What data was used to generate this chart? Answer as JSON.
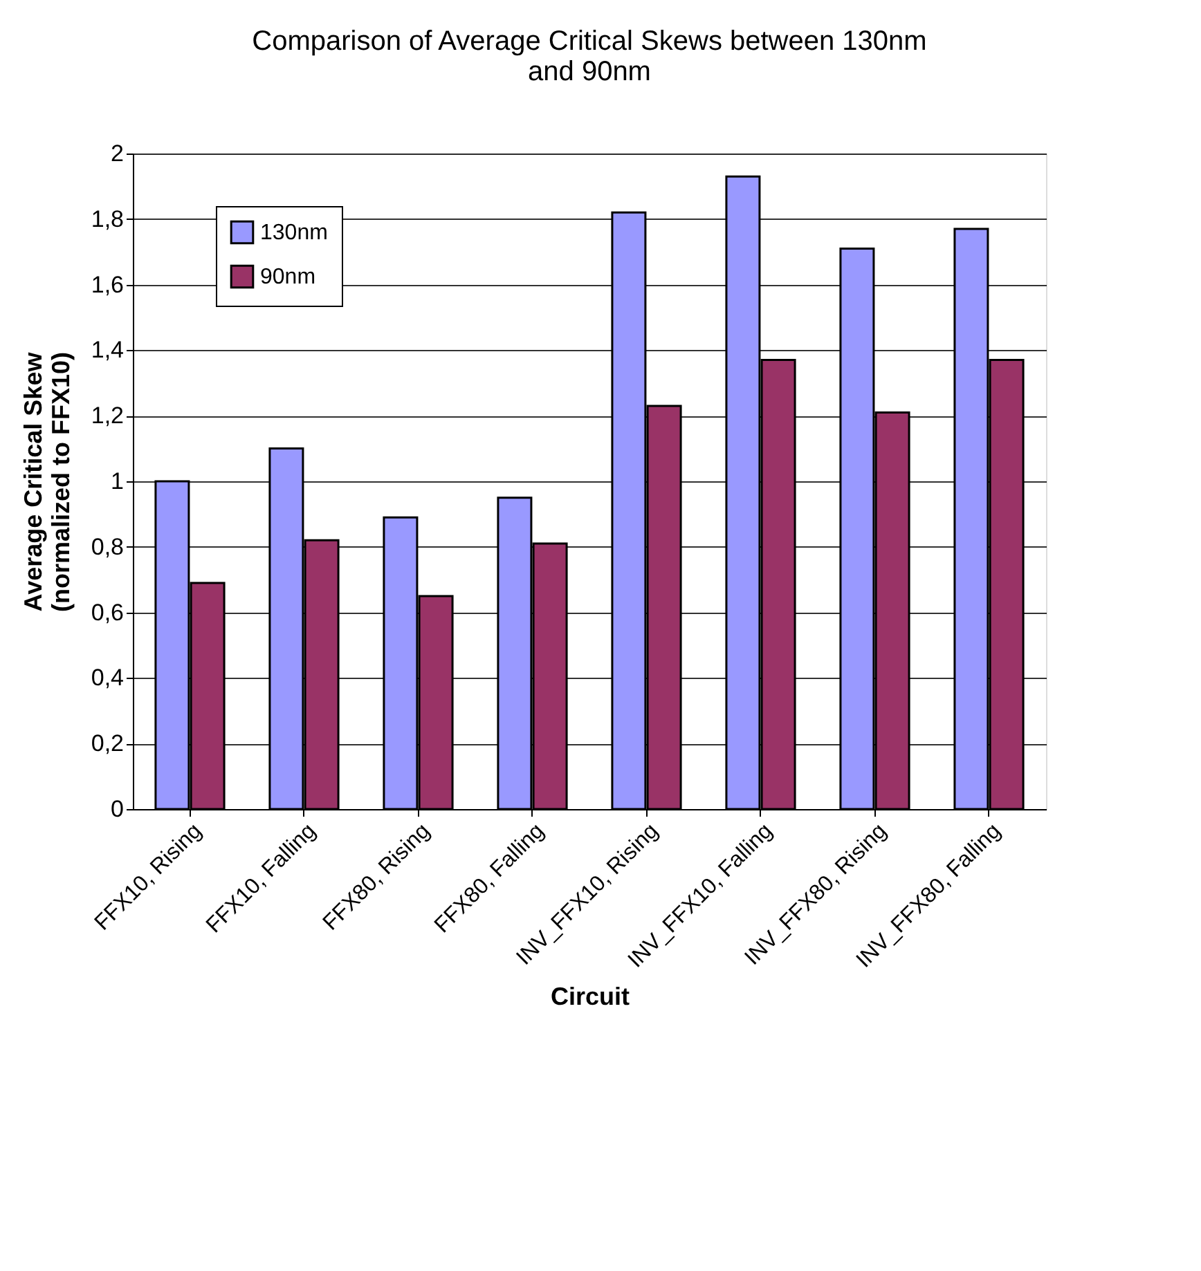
{
  "chart_data": {
    "type": "bar",
    "title": [
      "Comparison of Average Critical Skews between 130nm",
      "and 90nm"
    ],
    "xlabel": "Circuit",
    "ylabel": [
      "Average Critical Skew",
      "(normalized to FFX10)"
    ],
    "categories": [
      "FFX10, Rising",
      "FFX10, Falling",
      "FFX80, Rising",
      "FFX80, Falling",
      "INV_FFX10, Rising",
      "INV_FFX10, Falling",
      "INV_FFX80, Rising",
      "INV_FFX80, Falling"
    ],
    "series": [
      {
        "name": "130nm",
        "color": "#9999ff",
        "values": [
          1.0,
          1.1,
          0.89,
          0.95,
          1.82,
          1.93,
          1.71,
          1.77
        ]
      },
      {
        "name": "90nm",
        "color": "#993366",
        "values": [
          0.69,
          0.82,
          0.65,
          0.81,
          1.23,
          1.37,
          1.21,
          1.37
        ]
      }
    ],
    "ylim": [
      0,
      2
    ],
    "yticks": [
      0,
      {
        "value": 0.2,
        "label": "0,2"
      },
      {
        "value": 0.4,
        "label": "0,4"
      },
      {
        "value": 0.6,
        "label": "0,6"
      },
      {
        "value": 0.8,
        "label": "0,8"
      },
      1,
      {
        "value": 1.2,
        "label": "1,2"
      },
      {
        "value": 1.4,
        "label": "1,4"
      },
      {
        "value": 1.6,
        "label": "1,6"
      },
      {
        "value": 1.8,
        "label": "1,8"
      },
      2
    ],
    "grid": "y",
    "legend": "top left"
  }
}
